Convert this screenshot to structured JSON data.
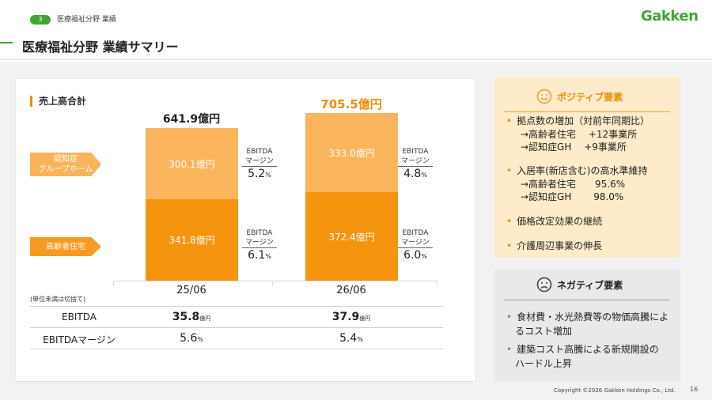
{
  "header": {
    "section_no": "3",
    "section_label": "医療福祉分野 業績",
    "logo": "Gakken",
    "title": "医療福祉分野 業績サマリー"
  },
  "chart_data": {
    "type": "bar",
    "title": "売上高合計",
    "categories": [
      "25/06",
      "26/06"
    ],
    "totals": [
      "641.9億円",
      "705.5億円"
    ],
    "series": [
      {
        "name": "高齢者住宅",
        "values": [
          341.8,
          372.4
        ],
        "labels": [
          "341.8億円",
          "372.4億円"
        ],
        "ebitda_margin": [
          "6.1",
          "6.0"
        ]
      },
      {
        "name": "認知症グループホーム",
        "values": [
          300.1,
          333.0
        ],
        "labels": [
          "300.1億円",
          "333.0億円"
        ],
        "ebitda_margin": [
          "5.2",
          "4.8"
        ]
      }
    ],
    "stacked": true,
    "ylim": [
      0,
      705.5
    ],
    "colors": {
      "高齢者住宅": "#f5940f",
      "認知症グループホーム": "#fbb55d",
      "total_highlight": "#f08c00"
    }
  },
  "chart_labels": {
    "series_label_gh_line1": "認知症",
    "series_label_gh_line2": "グループホーム",
    "series_label_elder": "高齢者住宅",
    "ebitda_line1": "EBITDA",
    "ebitda_line2": "マージン",
    "pct": "%",
    "note": "(単位未満は切捨て)"
  },
  "table": {
    "rows": [
      {
        "label": "EBITDA",
        "values": [
          "35.8",
          "37.9"
        ],
        "unit": "億円"
      },
      {
        "label": "EBITDAマージン",
        "values": [
          "5.6",
          "5.4"
        ],
        "unit": "%"
      }
    ]
  },
  "positive": {
    "icon": "smile-face-icon",
    "title": "ポジティブ要素",
    "b1": "拠点数の増加（対前年同期比）",
    "b1_s1": "→高齢者住宅　 +12事業所",
    "b1_s2": "→認知症GH　  +9事業所",
    "b2": "入居率(新店含む)の高水準維持",
    "b2_s1": "→高齢者住宅　　95.6%",
    "b2_s2": "→認知症GH　　 98.0%",
    "b3": "価格改定効果の継続",
    "b4": "介護周辺事業の伸長"
  },
  "negative": {
    "icon": "sad-face-icon",
    "title": "ネガティブ要素",
    "b1_l1": "食材費・水光熱費等の物価高騰によ",
    "b1_l2": "るコスト増加",
    "b2_l1": "建築コスト高騰による新規開設の",
    "b2_l2": "ハードル上昇"
  },
  "footer": {
    "copyright": "Copyright ©2026 Gakken Holdings Co., Ltd.",
    "page": "16"
  }
}
